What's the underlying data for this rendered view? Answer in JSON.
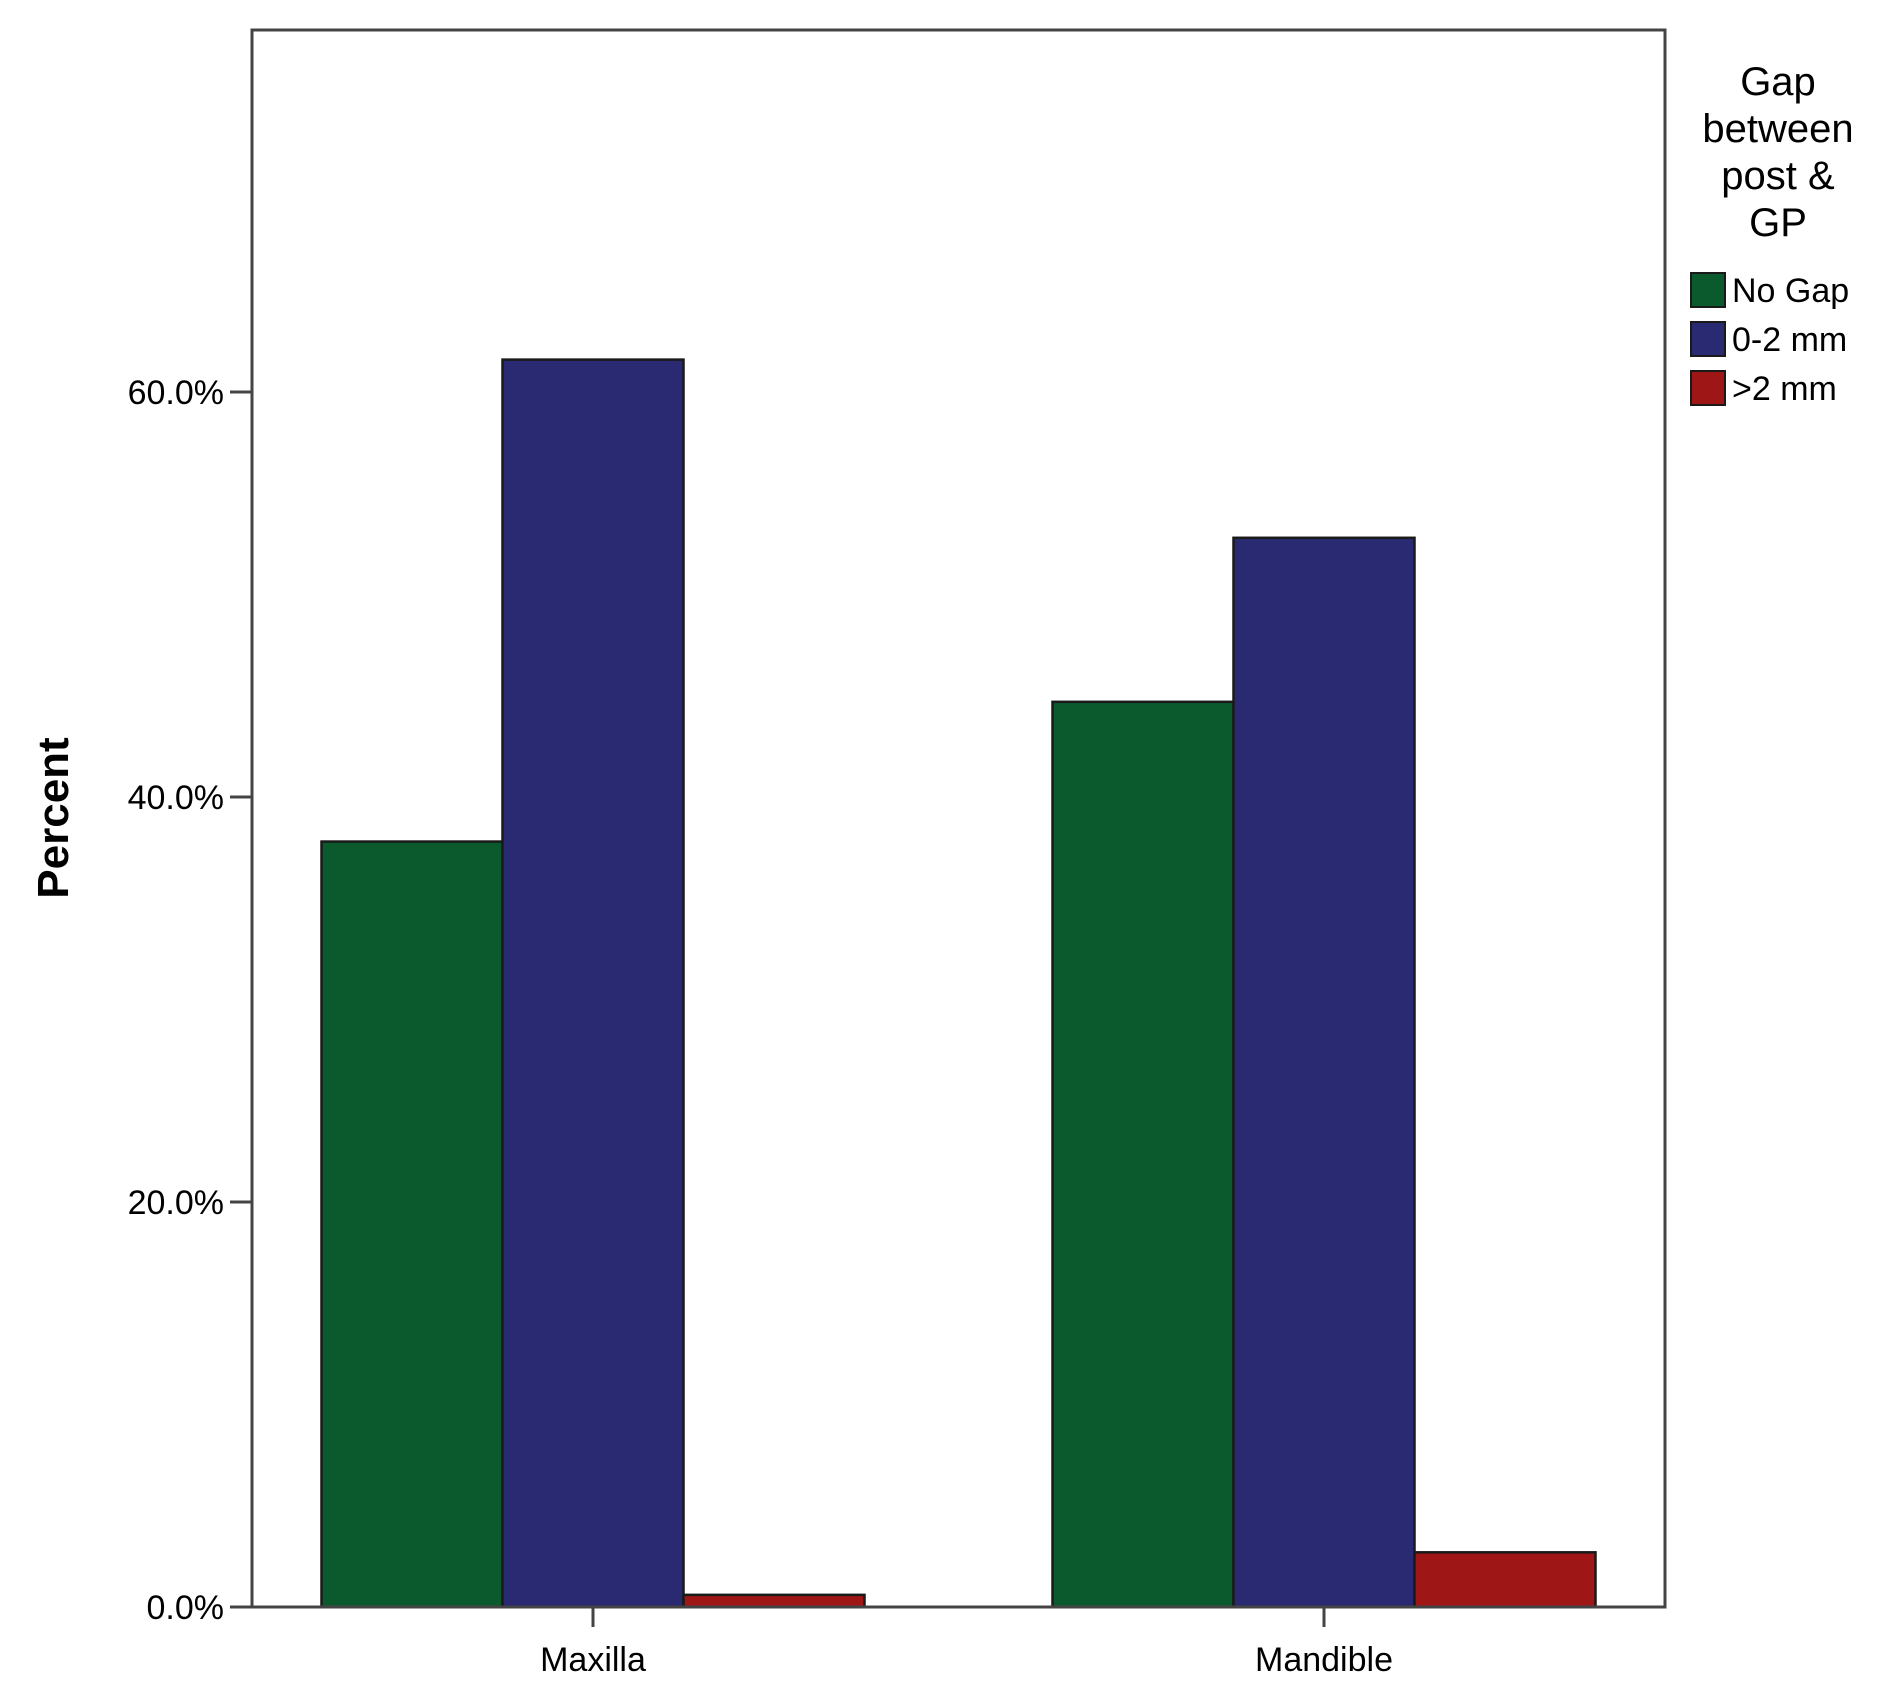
{
  "chart_data": {
    "type": "bar",
    "title": "",
    "xlabel": "",
    "ylabel": "Percent",
    "categories": [
      "Maxilla",
      "Mandible"
    ],
    "series": [
      {
        "name": "No Gap",
        "color": "#0b5a2d",
        "values": [
          37.8,
          44.7
        ]
      },
      {
        "name": "0-2 mm",
        "color": "#2a2a72",
        "values": [
          61.6,
          52.8
        ]
      },
      {
        "name": ">2 mm",
        "color": "#9e1616",
        "values": [
          0.6,
          2.7
        ]
      }
    ],
    "ylim": [
      0,
      78
    ],
    "yticks": [
      0,
      20,
      40,
      60
    ],
    "ytick_labels": [
      "0.0%",
      "20.0%",
      "40.0%",
      "60.0%"
    ],
    "grid": false,
    "legend": {
      "title_lines": [
        "Gap",
        "between",
        "post &",
        "GP"
      ],
      "placement": "right"
    }
  }
}
